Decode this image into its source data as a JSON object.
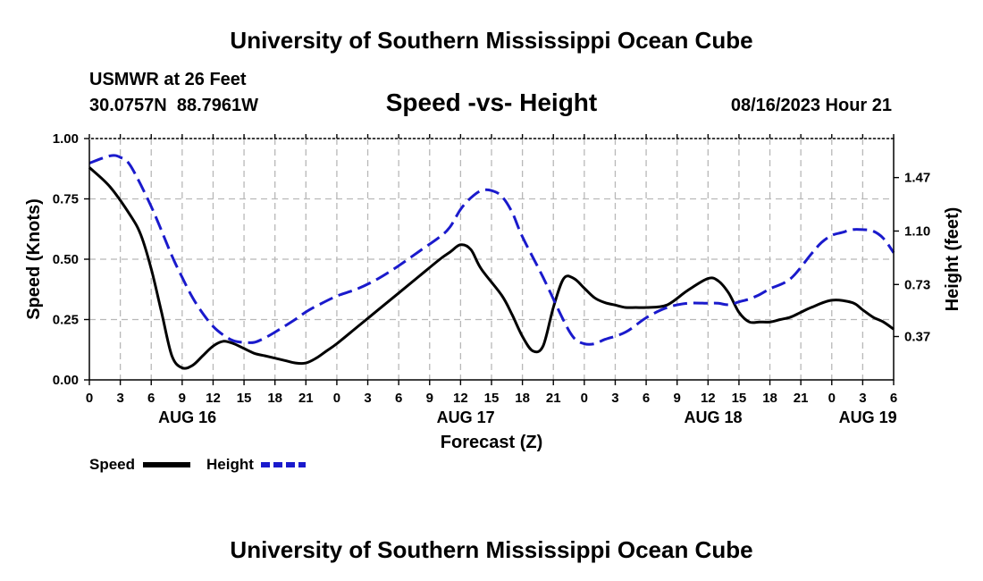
{
  "header": {
    "title": "University of Southern Mississippi Ocean Cube",
    "station": "USMWR at 26 Feet",
    "coords": "30.0757N  88.7961W",
    "datetime": "08/16/2023 Hour 21",
    "footer_title": "University of Southern Mississippi Ocean Cube"
  },
  "chart_data": {
    "type": "line",
    "title": "Speed -vs- Height",
    "xlabel": "Forecast (Z)",
    "ylabel": "Speed (Knots)",
    "y2label": "Height (feet)",
    "xlim": [
      0,
      78
    ],
    "ylim": [
      0,
      1.0
    ],
    "y2lim": [
      0.07,
      1.74
    ],
    "x_ticks": [
      0,
      3,
      6,
      9,
      12,
      15,
      18,
      21,
      24,
      27,
      30,
      33,
      36,
      39,
      42,
      45,
      48,
      51,
      54,
      57,
      60,
      63,
      66,
      69,
      72,
      75,
      78
    ],
    "x_tick_labels": [
      "0",
      "3",
      "6",
      "9",
      "12",
      "15",
      "18",
      "21",
      "0",
      "3",
      "6",
      "9",
      "12",
      "15",
      "18",
      "21",
      "0",
      "3",
      "6",
      "9",
      "12",
      "15",
      "18",
      "21",
      "0",
      "3",
      "6"
    ],
    "y_ticks": [
      0.0,
      0.25,
      0.5,
      0.75,
      1.0
    ],
    "y_tick_labels": [
      "0.00",
      "0.25",
      "0.50",
      "0.75",
      "1.00"
    ],
    "y2_ticks": [
      0.37,
      0.73,
      1.1,
      1.47
    ],
    "y2_tick_labels": [
      "0.37",
      "0.73",
      "1.10",
      "1.47"
    ],
    "day_labels": [
      {
        "label": "AUG 16",
        "x": 9.5
      },
      {
        "label": "AUG 17",
        "x": 36.5
      },
      {
        "label": "AUG 18",
        "x": 60.5
      },
      {
        "label": "AUG 19",
        "x": 75.5
      }
    ],
    "legend": [
      {
        "name": "Speed",
        "color": "#000000",
        "dash": "solid"
      },
      {
        "name": "Height",
        "color": "#1a1acc",
        "dash": "dashed"
      }
    ],
    "series": [
      {
        "name": "Speed",
        "axis": "left",
        "color": "#000000",
        "x": [
          0,
          2,
          4,
          5,
          6,
          7,
          8,
          9,
          10,
          11,
          12,
          13,
          14,
          15,
          16,
          17,
          18,
          19,
          20,
          21,
          22,
          23,
          24,
          26,
          28,
          30,
          32,
          34,
          35,
          36,
          37,
          38,
          40,
          41,
          42,
          43,
          44,
          45,
          46,
          47,
          48,
          49,
          50,
          51,
          52,
          53,
          54,
          56,
          58,
          60,
          61,
          62,
          63,
          64,
          65,
          66,
          67,
          68,
          69,
          70,
          72,
          74,
          75,
          76,
          77,
          78
        ],
        "y": [
          0.88,
          0.8,
          0.68,
          0.6,
          0.46,
          0.28,
          0.1,
          0.05,
          0.06,
          0.1,
          0.14,
          0.16,
          0.15,
          0.13,
          0.11,
          0.1,
          0.09,
          0.08,
          0.07,
          0.07,
          0.09,
          0.12,
          0.15,
          0.22,
          0.29,
          0.36,
          0.43,
          0.5,
          0.53,
          0.56,
          0.54,
          0.46,
          0.35,
          0.27,
          0.18,
          0.12,
          0.14,
          0.3,
          0.42,
          0.42,
          0.38,
          0.34,
          0.32,
          0.31,
          0.3,
          0.3,
          0.3,
          0.31,
          0.37,
          0.42,
          0.41,
          0.36,
          0.28,
          0.24,
          0.24,
          0.24,
          0.25,
          0.26,
          0.28,
          0.3,
          0.33,
          0.32,
          0.29,
          0.26,
          0.24,
          0.21
        ]
      },
      {
        "name": "Height",
        "axis": "right",
        "color": "#1a1acc",
        "x": [
          0,
          2,
          3,
          4,
          6,
          8,
          9,
          10,
          11,
          12,
          13,
          14,
          15,
          16,
          17,
          18,
          20,
          21,
          22,
          24,
          26,
          28,
          30,
          32,
          34,
          35,
          36,
          37,
          38,
          39,
          40,
          41,
          42,
          44,
          46,
          47,
          48,
          49,
          50,
          52,
          54,
          56,
          58,
          60,
          61,
          62,
          63,
          64,
          65,
          66,
          68,
          70,
          71,
          72,
          73,
          74,
          75,
          76,
          77,
          78
        ],
        "y": [
          1.57,
          1.62,
          1.61,
          1.55,
          1.27,
          0.93,
          0.78,
          0.64,
          0.53,
          0.44,
          0.38,
          0.34,
          0.33,
          0.33,
          0.36,
          0.4,
          0.49,
          0.54,
          0.58,
          0.65,
          0.7,
          0.77,
          0.86,
          0.96,
          1.06,
          1.13,
          1.25,
          1.33,
          1.38,
          1.38,
          1.34,
          1.23,
          1.06,
          0.78,
          0.48,
          0.36,
          0.32,
          0.32,
          0.35,
          0.4,
          0.5,
          0.57,
          0.6,
          0.6,
          0.6,
          0.59,
          0.61,
          0.63,
          0.66,
          0.7,
          0.77,
          0.94,
          1.02,
          1.07,
          1.09,
          1.11,
          1.11,
          1.1,
          1.05,
          0.95
        ]
      }
    ]
  }
}
